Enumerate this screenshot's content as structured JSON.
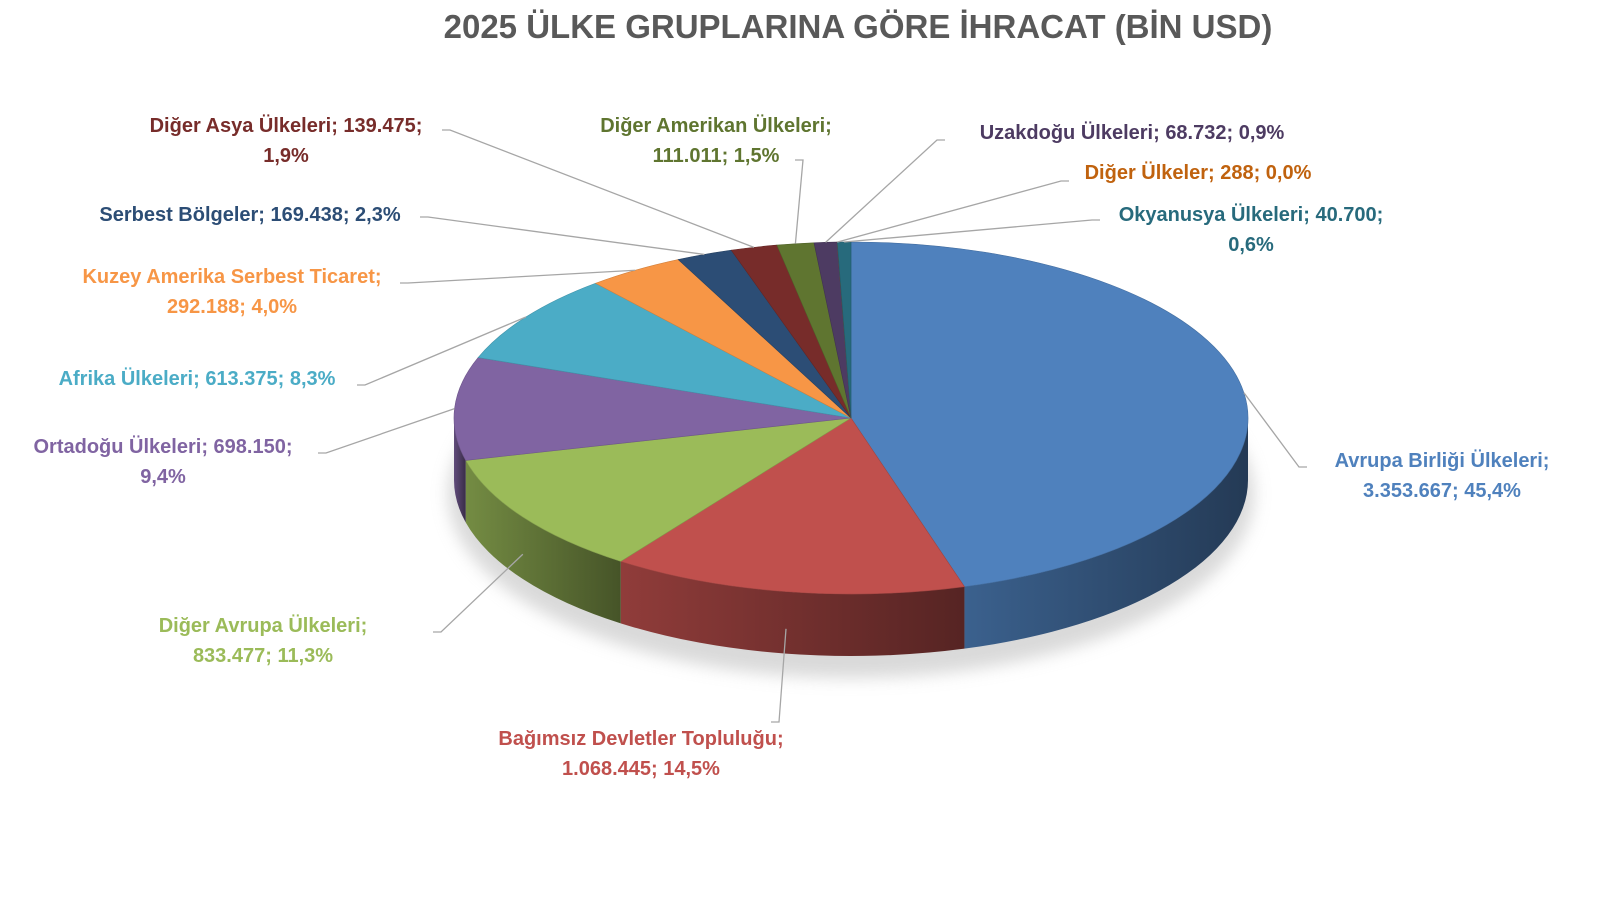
{
  "chart_data": {
    "type": "pie",
    "style": "3d",
    "title": "2025 ÜLKE GRUPLARINA GÖRE İHRACAT (BİN USD)",
    "slices": [
      {
        "name": "Avrupa Birliği Ülkeleri",
        "value": 3353667,
        "value_label": "3.353.667",
        "percent": "45,4%",
        "color": "#4f81bd",
        "label_color": "#4f81bd"
      },
      {
        "name": "Bağımsız Devletler Topluluğu",
        "value": 1068445,
        "value_label": "1.068.445",
        "percent": "14,5%",
        "color": "#c0504d",
        "label_color": "#c0504d"
      },
      {
        "name": "Diğer Avrupa Ülkeleri",
        "value": 833477,
        "value_label": "833.477",
        "percent": "11,3%",
        "color": "#9bbb59",
        "label_color": "#9bbb59"
      },
      {
        "name": "Ortadoğu Ülkeleri",
        "value": 698150,
        "value_label": "698.150",
        "percent": "9,4%",
        "color": "#8064a2",
        "label_color": "#8064a2"
      },
      {
        "name": "Afrika Ülkeleri",
        "value": 613375,
        "value_label": "613.375",
        "percent": "8,3%",
        "color": "#4bacc6",
        "label_color": "#4bacc6"
      },
      {
        "name": "Kuzey Amerika Serbest Ticaret",
        "value": 292188,
        "value_label": "292.188",
        "percent": "4,0%",
        "color": "#f79646",
        "label_color": "#f79646"
      },
      {
        "name": "Serbest Bölgeler",
        "value": 169438,
        "value_label": "169.438",
        "percent": "2,3%",
        "color": "#2c4d75",
        "label_color": "#2c4d75"
      },
      {
        "name": "Diğer Asya Ülkeleri",
        "value": 139475,
        "value_label": "139.475",
        "percent": "1,9%",
        "color": "#772c2a",
        "label_color": "#772c2a"
      },
      {
        "name": "Diğer Amerikan Ülkeleri",
        "value": 111011,
        "value_label": "111.011",
        "percent": "1,5%",
        "color": "#5f7530",
        "label_color": "#5f7530"
      },
      {
        "name": "Uzakdoğu Ülkeleri",
        "value": 68732,
        "value_label": "68.732",
        "percent": "0,9%",
        "color": "#4d3b62",
        "label_color": "#4d3b62"
      },
      {
        "name": "Diğer Ülkeler",
        "value": 288,
        "value_label": "288",
        "percent": "0,0%",
        "color": "#b65708",
        "label_color": "#c0620e"
      },
      {
        "name": "Okyanusya Ülkeleri",
        "value": 40700,
        "value_label": "40.700",
        "percent": "0,6%",
        "color": "#276a7c",
        "label_color": "#276a7c"
      }
    ]
  }
}
